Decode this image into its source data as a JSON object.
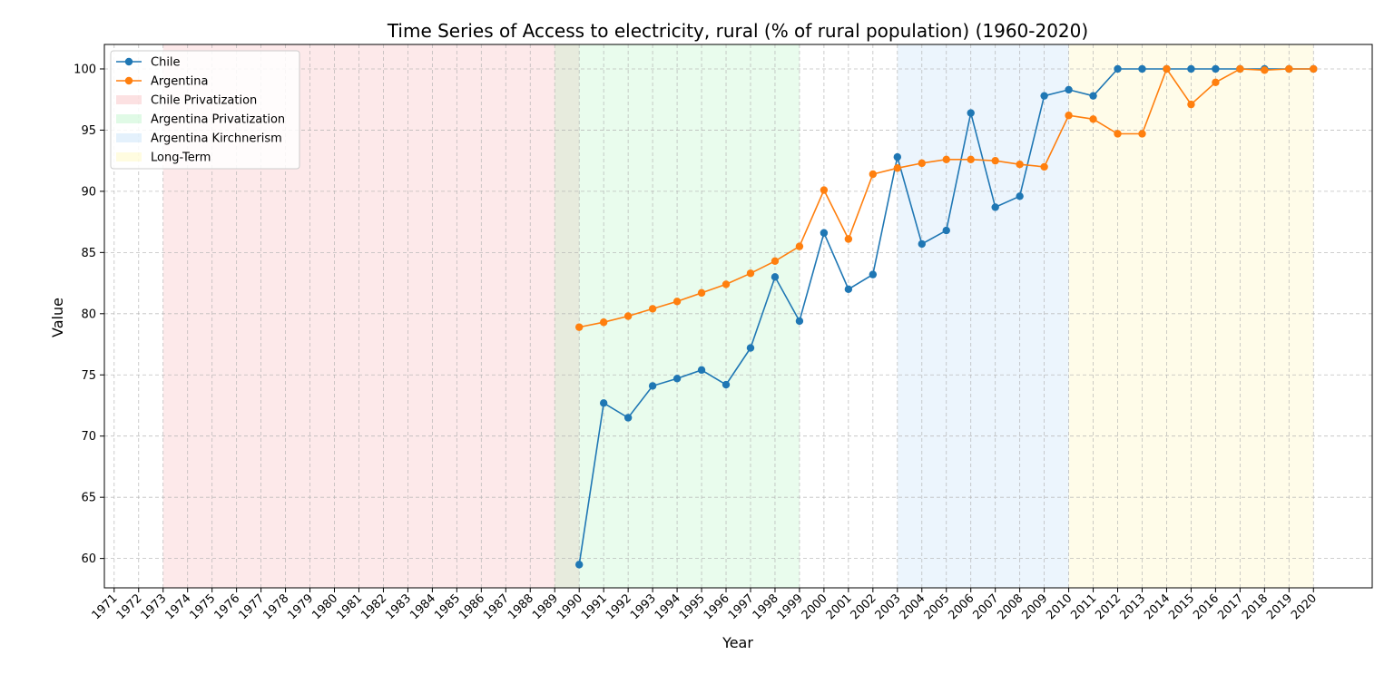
{
  "chart_data": {
    "type": "line",
    "title": "Time Series of Access to electricity, rural (% of rural population) (1960-2020)",
    "xlabel": "Year",
    "ylabel": "Value",
    "xlim": [
      1970.6,
      2022.4
    ],
    "ylim": [
      57.6,
      102
    ],
    "yticks": [
      60,
      65,
      70,
      75,
      80,
      85,
      90,
      95,
      100
    ],
    "xticks": [
      1971,
      1972,
      1973,
      1974,
      1975,
      1976,
      1977,
      1978,
      1979,
      1980,
      1981,
      1982,
      1983,
      1984,
      1985,
      1986,
      1987,
      1988,
      1989,
      1990,
      1991,
      1992,
      1993,
      1994,
      1995,
      1996,
      1997,
      1998,
      1999,
      2000,
      2001,
      2002,
      2003,
      2004,
      2005,
      2006,
      2007,
      2008,
      2009,
      2010,
      2011,
      2012,
      2013,
      2014,
      2015,
      2016,
      2017,
      2018,
      2019,
      2020
    ],
    "grid": true,
    "legend_position": "top-left",
    "shaded_regions": [
      {
        "name": "Chile Privatization",
        "start": 1973,
        "end": 1990,
        "color": "#f7a8ad"
      },
      {
        "name": "Argentina Privatization",
        "start": 1989,
        "end": 1999,
        "color": "#a6f2b8"
      },
      {
        "name": "Argentina Kirchnerism",
        "start": 2003,
        "end": 2010,
        "color": "#b3d6f7"
      },
      {
        "name": "Long-Term",
        "start": 2010,
        "end": 2020,
        "color": "#fff5a6"
      }
    ],
    "series": [
      {
        "name": "Chile",
        "color": "#1f77b4",
        "x": [
          1990,
          1991,
          1992,
          1993,
          1994,
          1995,
          1996,
          1997,
          1998,
          1999,
          2000,
          2001,
          2002,
          2003,
          2004,
          2005,
          2006,
          2007,
          2008,
          2009,
          2010,
          2011,
          2012,
          2013,
          2014,
          2015,
          2016,
          2017,
          2018,
          2019,
          2020
        ],
        "y": [
          59.5,
          72.7,
          71.5,
          74.1,
          74.7,
          75.4,
          74.2,
          77.2,
          83.0,
          79.4,
          86.6,
          82.0,
          83.2,
          92.8,
          85.7,
          86.8,
          96.4,
          88.7,
          89.6,
          97.8,
          98.3,
          97.8,
          100,
          100,
          100,
          100,
          100,
          100,
          100,
          100,
          100
        ]
      },
      {
        "name": "Argentina",
        "color": "#ff7f0e",
        "x": [
          1990,
          1991,
          1992,
          1993,
          1994,
          1995,
          1996,
          1997,
          1998,
          1999,
          2000,
          2001,
          2002,
          2003,
          2004,
          2005,
          2006,
          2007,
          2008,
          2009,
          2010,
          2011,
          2012,
          2013,
          2014,
          2015,
          2016,
          2017,
          2018,
          2019,
          2020
        ],
        "y": [
          78.9,
          79.3,
          79.8,
          80.4,
          81.0,
          81.7,
          82.4,
          83.3,
          84.3,
          85.5,
          90.1,
          86.1,
          91.4,
          91.9,
          92.3,
          92.6,
          92.6,
          92.5,
          92.2,
          92.0,
          96.2,
          95.9,
          94.7,
          94.7,
          100,
          97.1,
          98.9,
          100,
          99.9,
          100,
          100
        ]
      }
    ]
  }
}
